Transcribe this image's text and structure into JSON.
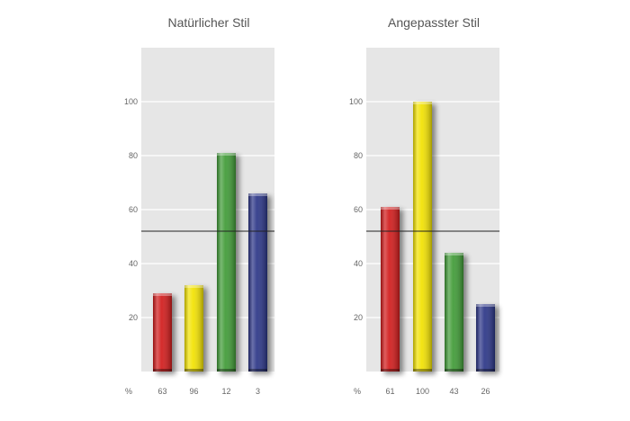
{
  "chart_data": [
    {
      "type": "bar",
      "title": "Natürlicher Stil",
      "ylim": [
        0,
        120
      ],
      "yticks": [
        20,
        40,
        60,
        80,
        100
      ],
      "reference_line": 52,
      "values": [
        29,
        32,
        81,
        66
      ],
      "colors": [
        "#d11a1a",
        "#f2e200",
        "#3f9a35",
        "#2a3486"
      ],
      "footer_unit": "%",
      "footer_labels": [
        "63",
        "96",
        "12",
        "3"
      ],
      "grid": true
    },
    {
      "type": "bar",
      "title": "Angepasster Stil",
      "ylim": [
        0,
        120
      ],
      "yticks": [
        20,
        40,
        60,
        80,
        100
      ],
      "reference_line": 52,
      "values": [
        61,
        100,
        44,
        25
      ],
      "colors": [
        "#d11a1a",
        "#f2e200",
        "#3f9a35",
        "#2a3486"
      ],
      "footer_unit": "%",
      "footer_labels": [
        "61",
        "100",
        "43",
        "26"
      ],
      "grid": true
    }
  ]
}
